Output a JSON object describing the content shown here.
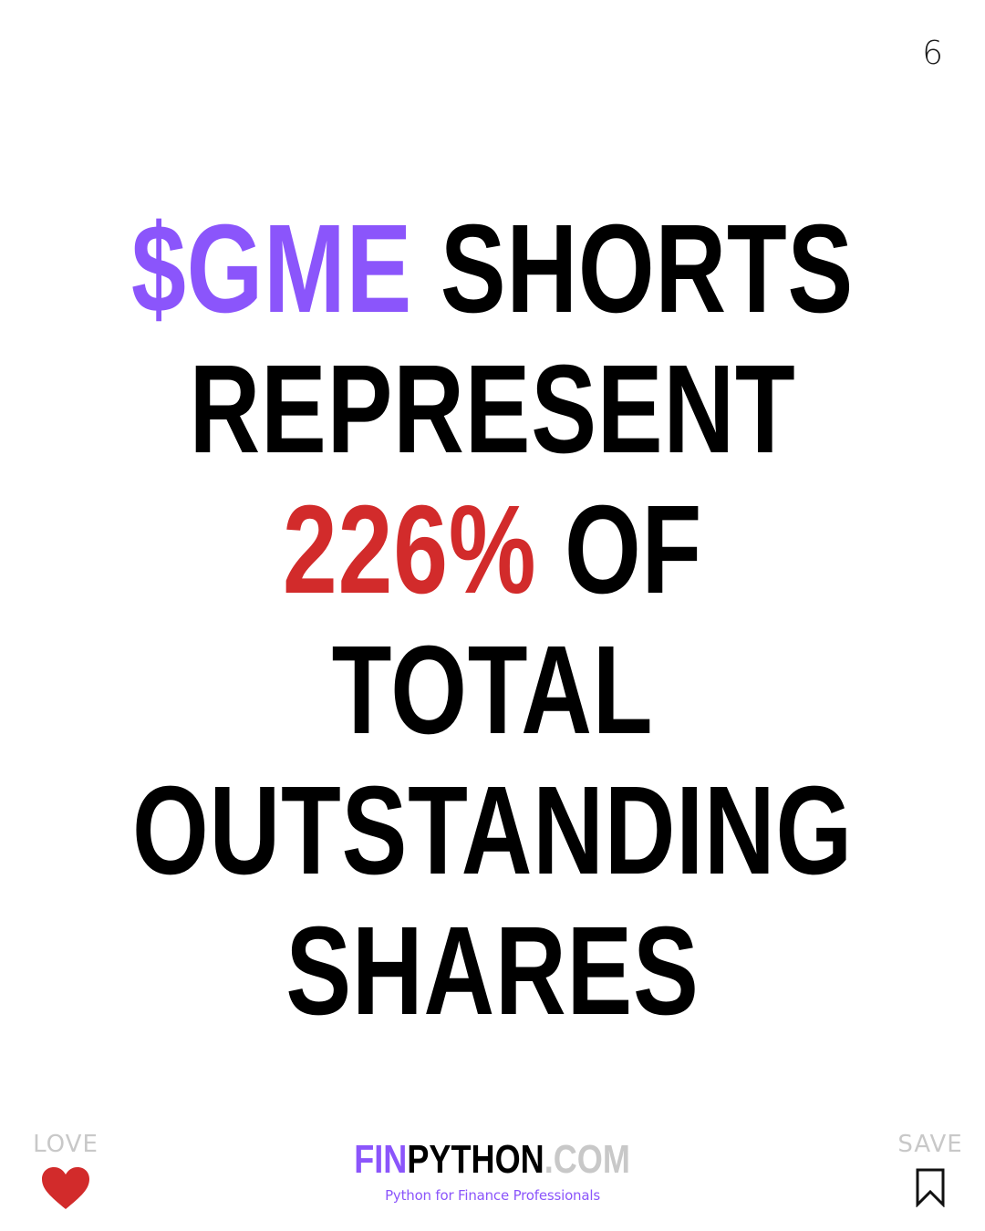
{
  "page": {
    "number": "6"
  },
  "headline": {
    "line1_accent": "$GME",
    "line1_rest": " SHORTS",
    "line2": "REPRESENT",
    "line3_accent": "226%",
    "line3_rest": " OF",
    "line4": "TOTAL",
    "line5": "OUTSTANDING",
    "line6": "SHARES"
  },
  "footer": {
    "love_label": "LOVE",
    "save_label": "SAVE",
    "brand_fin": "FIN",
    "brand_python": "PYTHON",
    "brand_com": ".COM",
    "tagline": "Python for Finance Professionals"
  },
  "colors": {
    "accent_purple": "#8b55fb",
    "accent_red": "#d22b2b",
    "muted_gray": "#c8c8c8"
  },
  "icons": {
    "love": "heart-icon",
    "save": "bookmark-icon"
  }
}
